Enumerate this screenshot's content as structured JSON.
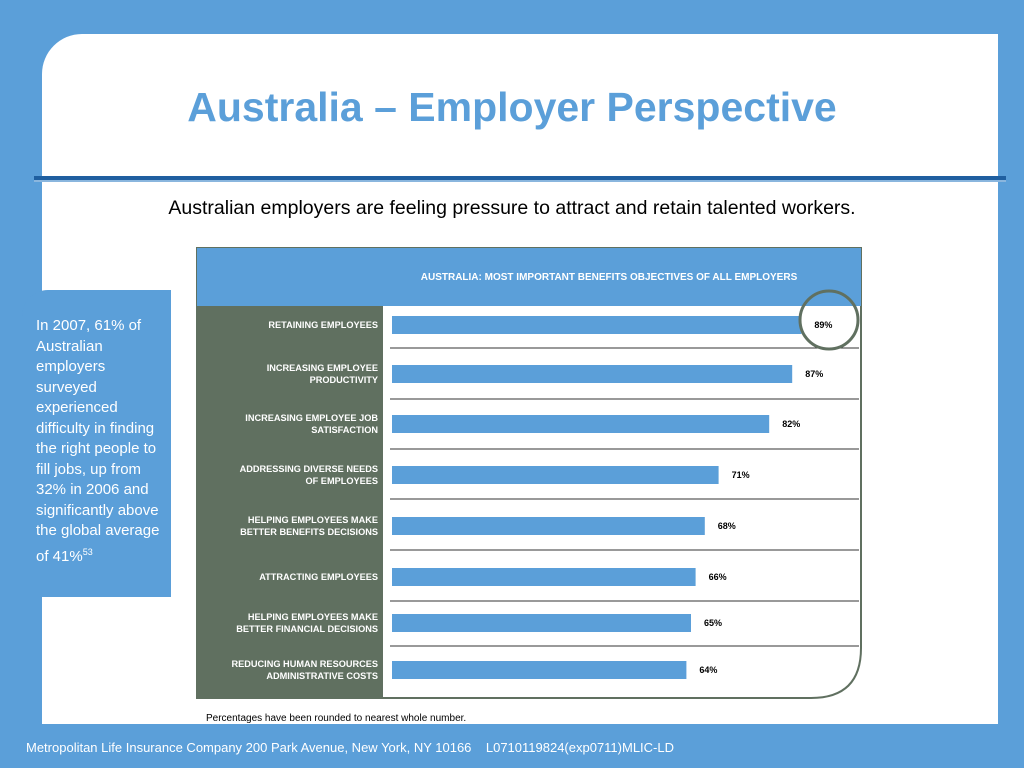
{
  "slide": {
    "title": "Australia – Employer Perspective",
    "subtitle": "Australian employers are feeling pressure to attract and retain talented workers.",
    "callout_text": "In 2007, 61% of Australian employers surveyed experienced difficulty in finding the right people to fill jobs, up from 32% in 2006 and significantly above the global average of 41%",
    "callout_footnote": "53",
    "footer": "Metropolitan Life Insurance Company 200 Park Avenue, New York, NY 10166    L0710119824(exp0711)MLIC-LD"
  },
  "colors": {
    "background": "#5b9fd9",
    "bar": "#5b9fd9",
    "category_panel": "#607060",
    "title_rule": "#1f5fa0",
    "highlight_circle": "#607060"
  },
  "chart_data": {
    "type": "bar",
    "orientation": "horizontal",
    "title": "AUSTRALIA: MOST IMPORTANT BENEFITS OBJECTIVES OF ALL EMPLOYERS",
    "categories": [
      [
        "RETAINING EMPLOYEES"
      ],
      [
        "INCREASING EMPLOYEE",
        "PRODUCTIVITY"
      ],
      [
        "INCREASING EMPLOYEE JOB",
        "SATISFACTION"
      ],
      [
        "ADDRESSING DIVERSE NEEDS",
        "OF EMPLOYEES"
      ],
      [
        "HELPING EMPLOYEES MAKE",
        "BETTER BENEFITS DECISIONS"
      ],
      [
        "ATTRACTING EMPLOYEES"
      ],
      [
        "HELPING EMPLOYEES MAKE",
        "BETTER FINANCIAL DECISIONS"
      ],
      [
        "REDUCING HUMAN RESOURCES",
        "ADMINISTRATIVE COSTS"
      ]
    ],
    "values": [
      89,
      87,
      82,
      71,
      68,
      66,
      65,
      64
    ],
    "value_labels": [
      "89%",
      "87%",
      "82%",
      "71%",
      "68%",
      "66%",
      "65%",
      "64%"
    ],
    "highlighted_index": 0,
    "note": "Percentages  have been rounded to nearest whole number."
  }
}
